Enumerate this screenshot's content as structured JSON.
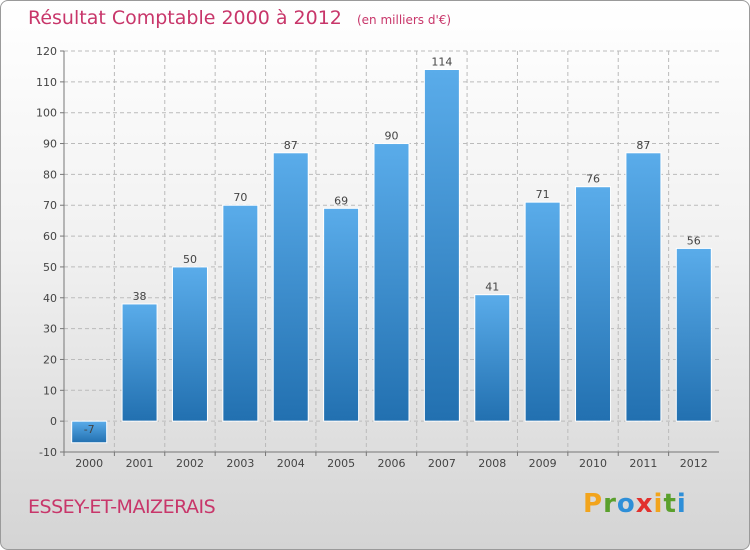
{
  "title": "Résultat Comptable 2000 à 2012",
  "unit": "(en milliers d'€)",
  "city": "ESSEY-ET-MAIZERAIS",
  "logo": [
    "P",
    "r",
    "o",
    "x",
    "i",
    "t",
    "i"
  ],
  "colors": {
    "accent": "#c8366a",
    "bar_top": "#5aacea",
    "bar_bottom": "#2270b0",
    "grid": "#bbbbbb",
    "logo": [
      "#f2a41c",
      "#5aa02c",
      "#2e8fd8",
      "#e2312d",
      "#f2a41c",
      "#5aa02c",
      "#2e8fd8"
    ]
  },
  "chart_data": {
    "type": "bar",
    "title": "Résultat Comptable 2000 à 2012",
    "xlabel": "",
    "ylabel": "(en milliers d'€)",
    "categories": [
      "2000",
      "2001",
      "2002",
      "2003",
      "2004",
      "2005",
      "2006",
      "2007",
      "2008",
      "2009",
      "2010",
      "2011",
      "2012"
    ],
    "values": [
      -7,
      38,
      50,
      70,
      87,
      69,
      90,
      114,
      41,
      71,
      76,
      87,
      56
    ],
    "value_labels": [
      "-7",
      "38",
      "50",
      "70",
      "87",
      "69",
      "90",
      "114",
      "41",
      "71",
      "76",
      "87",
      "56"
    ],
    "ylim": [
      -10,
      120
    ],
    "yticks": [
      -10,
      0,
      10,
      20,
      30,
      40,
      50,
      60,
      70,
      80,
      90,
      100,
      110,
      120
    ],
    "grid": true
  }
}
